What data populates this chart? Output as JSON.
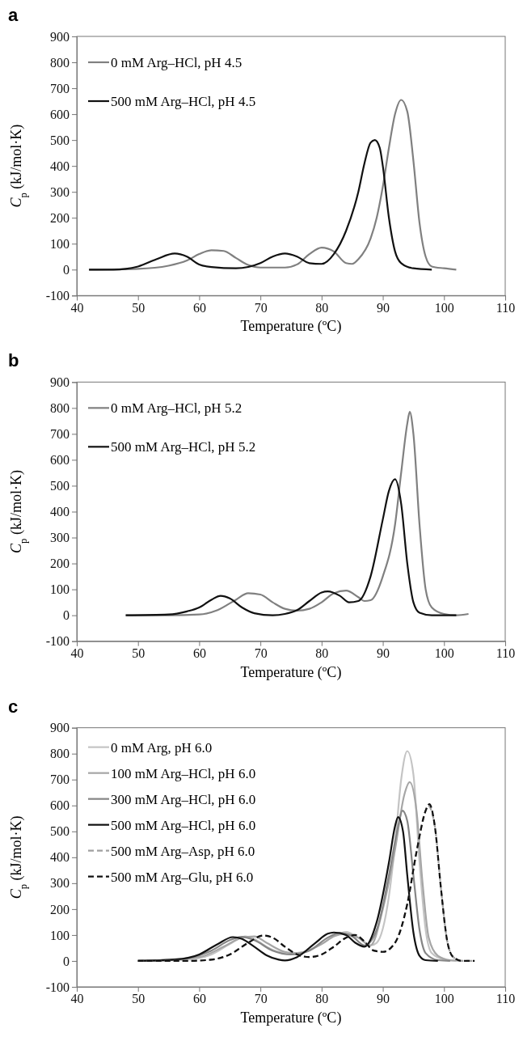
{
  "chart_data": [
    {
      "type": "line",
      "title": "a",
      "xlabel": "Temperature (ºC)",
      "ylabel": "$_{}$C$_{p}$ (kJ/mol·K)",
      "xlim": [
        40,
        110
      ],
      "xticks": [
        40,
        50,
        60,
        70,
        80,
        90,
        100,
        110
      ],
      "ylim": [
        -100,
        900
      ],
      "yticks": [
        -100,
        0,
        100,
        200,
        300,
        400,
        500,
        600,
        700,
        800,
        900
      ],
      "grid": false,
      "legend": "top left",
      "line_style": "solid",
      "marker": "none",
      "series": [
        {
          "name": "0 mM Arg–HCl, pH 4.5",
          "color": "#808080",
          "x": [
            42,
            50,
            55,
            58,
            60,
            62,
            64,
            66,
            68,
            70,
            74,
            76,
            78,
            80,
            82,
            84,
            85,
            86,
            88,
            89,
            90,
            91,
            92,
            93,
            94,
            95,
            96,
            97,
            98,
            100,
            102
          ],
          "values": [
            0,
            3,
            15,
            35,
            60,
            75,
            72,
            45,
            18,
            8,
            8,
            20,
            60,
            85,
            70,
            25,
            22,
            40,
            120,
            200,
            320,
            470,
            600,
            655,
            610,
            420,
            180,
            50,
            12,
            5,
            0
          ]
        },
        {
          "name": "500 mM Arg–HCl, pH 4.5",
          "color": "#111111",
          "x": [
            42,
            46,
            50,
            53,
            56,
            58,
            60,
            62,
            66,
            70,
            72,
            74,
            76,
            78,
            80,
            82,
            84,
            86,
            87,
            88,
            88.7,
            89.5,
            90,
            91,
            92,
            93,
            95,
            98
          ],
          "values": [
            0,
            0,
            12,
            40,
            62,
            50,
            20,
            10,
            5,
            25,
            50,
            62,
            50,
            25,
            22,
            60,
            150,
            300,
            410,
            490,
            500,
            470,
            400,
            200,
            70,
            25,
            5,
            0
          ]
        }
      ]
    },
    {
      "type": "line",
      "title": "b",
      "xlabel": "Temperature (ºC)",
      "ylabel": "$_{}$C$_{p}$ (kJ/mol·K)",
      "xlim": [
        40,
        110
      ],
      "xticks": [
        40,
        50,
        60,
        70,
        80,
        90,
        100,
        110
      ],
      "ylim": [
        -100,
        900
      ],
      "yticks": [
        -100,
        0,
        100,
        200,
        300,
        400,
        500,
        600,
        700,
        800,
        900
      ],
      "grid": false,
      "legend": "top left",
      "line_style": "solid",
      "marker": "none",
      "series": [
        {
          "name": "0 mM Arg–HCl, pH 5.2",
          "color": "#808080",
          "x": [
            48,
            55,
            60,
            63,
            66,
            68,
            70,
            72,
            74,
            76,
            78,
            80,
            82,
            84,
            86,
            87,
            88,
            90,
            92,
            93,
            94,
            94.4,
            95,
            96,
            97,
            98,
            100,
            102,
            104
          ],
          "values": [
            0,
            0,
            3,
            20,
            60,
            85,
            80,
            50,
            25,
            18,
            25,
            50,
            85,
            95,
            70,
            55,
            58,
            150,
            350,
            550,
            740,
            785,
            700,
            350,
            100,
            30,
            5,
            0,
            5
          ]
        },
        {
          "name": "500 mM Arg–HCl, pH 5.2",
          "color": "#111111",
          "x": [
            48,
            55,
            58,
            60,
            62,
            63.5,
            65,
            67,
            69,
            72,
            74,
            76,
            78,
            80,
            81,
            83,
            84.5,
            86,
            88,
            90,
            91,
            92,
            93,
            94,
            95,
            96,
            98,
            102
          ],
          "values": [
            0,
            3,
            15,
            30,
            60,
            75,
            65,
            30,
            8,
            0,
            5,
            20,
            55,
            88,
            92,
            75,
            50,
            55,
            150,
            370,
            480,
            525,
            430,
            200,
            50,
            10,
            0,
            0
          ]
        }
      ]
    },
    {
      "type": "line",
      "title": "c",
      "xlabel": "Temperature (ºC)",
      "ylabel": "$_{}$C$_{p}$ (kJ/mol·K)",
      "xlim": [
        40,
        110
      ],
      "xticks": [
        40,
        50,
        60,
        70,
        80,
        90,
        100,
        110
      ],
      "ylim": [
        -100,
        900
      ],
      "yticks": [
        -100,
        0,
        100,
        200,
        300,
        400,
        500,
        600,
        700,
        800,
        900
      ],
      "grid": false,
      "legend": "top left",
      "marker": "none",
      "series": [
        {
          "name": "0 mM Arg, pH 6.0",
          "color": "#c4c4c4",
          "line_style": "solid",
          "x": [
            50,
            58,
            62,
            65,
            67.5,
            69,
            71,
            73,
            75,
            77,
            80,
            82,
            84,
            86,
            88,
            89,
            91,
            92,
            93,
            94,
            95,
            96,
            97,
            98,
            100,
            102
          ],
          "values": [
            0,
            5,
            25,
            65,
            95,
            85,
            55,
            35,
            30,
            35,
            65,
            95,
            112,
            90,
            60,
            70,
            250,
            450,
            700,
            810,
            720,
            380,
            120,
            30,
            5,
            0
          ]
        },
        {
          "name": "100 mM Arg–HCl, pH 6.0",
          "color": "#a6a6a6",
          "line_style": "solid",
          "x": [
            50,
            60,
            64,
            67,
            69,
            71,
            74,
            76,
            80,
            82,
            84,
            86,
            88,
            90,
            92,
            93.5,
            94.4,
            95.5,
            96.5,
            97.5,
            99,
            101,
            103
          ],
          "values": [
            0,
            15,
            55,
            90,
            95,
            70,
            35,
            30,
            65,
            95,
            105,
            90,
            60,
            200,
            430,
            640,
            690,
            580,
            300,
            90,
            20,
            3,
            0
          ]
        },
        {
          "name": "300 mM Arg–HCl, pH 6.0",
          "color": "#858585",
          "line_style": "solid",
          "x": [
            50,
            58,
            62,
            65,
            67,
            69,
            72,
            75,
            78,
            81,
            83,
            85,
            87,
            89,
            91,
            92.5,
            93.2,
            94,
            95,
            96,
            97,
            99,
            101
          ],
          "values": [
            0,
            10,
            40,
            80,
            93,
            80,
            40,
            25,
            40,
            90,
            108,
            95,
            60,
            120,
            330,
            520,
            580,
            540,
            330,
            120,
            30,
            3,
            0
          ]
        },
        {
          "name": "500 mM Arg–HCl, pH 6.0",
          "color": "#111111",
          "line_style": "solid",
          "x": [
            50,
            56,
            60,
            63,
            65.5,
            67,
            69,
            71,
            73,
            74,
            76,
            79,
            81,
            82,
            84,
            85.5,
            87,
            89,
            91,
            92,
            92.5,
            93.3,
            94,
            95,
            96,
            97,
            99
          ],
          "values": [
            0,
            5,
            25,
            65,
            92,
            85,
            55,
            22,
            5,
            2,
            15,
            70,
            105,
            110,
            100,
            70,
            55,
            150,
            380,
            520,
            555,
            500,
            330,
            110,
            20,
            3,
            0
          ]
        },
        {
          "name": "500 mM Arg–Asp, pH 6.0",
          "color": "#a0a0a0",
          "line_style": "dashed",
          "x": [
            50,
            58,
            62,
            65,
            68,
            70.3,
            72,
            74,
            76,
            78,
            80,
            82,
            84,
            85.3,
            87,
            88.5,
            90,
            92,
            94,
            95.5,
            97,
            97.4,
            98.5,
            99.5,
            100.5,
            101.5,
            103,
            105
          ],
          "values": [
            0,
            0,
            5,
            25,
            70,
            98,
            90,
            55,
            25,
            15,
            25,
            55,
            90,
            100,
            75,
            40,
            35,
            70,
            220,
            420,
            580,
            600,
            520,
            280,
            80,
            15,
            0,
            0
          ]
        },
        {
          "name": "500 mM Arg–Glu, pH 6.0",
          "color": "#111111",
          "line_style": "dashed",
          "x": [
            50,
            58,
            62,
            65,
            68,
            70.5,
            72,
            74,
            76,
            78,
            80,
            82,
            84,
            85.5,
            87,
            88.5,
            90,
            92,
            94,
            95.5,
            97,
            97.6,
            98.5,
            99.5,
            100.5,
            101.5,
            103,
            105
          ],
          "values": [
            0,
            0,
            5,
            25,
            70,
            98,
            90,
            55,
            25,
            15,
            25,
            55,
            90,
            100,
            75,
            40,
            35,
            70,
            220,
            420,
            580,
            605,
            520,
            280,
            80,
            15,
            0,
            0
          ]
        }
      ]
    }
  ]
}
